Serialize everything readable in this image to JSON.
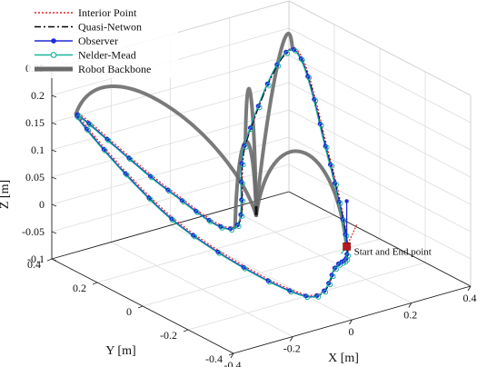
{
  "chart_data": {
    "type": "line3d",
    "xlabel": "X [m]",
    "ylabel": "Y [m]",
    "zlabel": "Z [m]",
    "xlim": [
      -0.4,
      0.4
    ],
    "ylim": [
      -0.4,
      0.4
    ],
    "zlim": [
      -0.1,
      0.25
    ],
    "xticks": [
      "-0.4",
      "-0.2",
      "0",
      "0.2",
      "0.4"
    ],
    "yticks": [
      "-0.4",
      "-0.2",
      "0",
      "0.2",
      "0.4"
    ],
    "zticks": [
      "-0.1",
      "-0.05",
      "0",
      "0.05",
      "0.1",
      "0.15",
      "0.2",
      "0.25"
    ],
    "grid": true,
    "legend_position": "top-left",
    "legend": [
      {
        "name": "Interior Point",
        "color": "#e0201b",
        "style": "dotted"
      },
      {
        "name": "Quasi-Netwon",
        "color": "#000000",
        "style": "dashdot"
      },
      {
        "name": "Observer",
        "color": "#1f2ad8",
        "style": "solid",
        "marker": "filled-circle"
      },
      {
        "name": "Nelder-Mead",
        "color": "#18b59a",
        "style": "solid",
        "marker": "open-circle"
      },
      {
        "name": "Robot Backbone",
        "color": "#6b6b6b",
        "style": "thick"
      }
    ],
    "annotation": "Start and End point",
    "start_point": {
      "x": 0.25,
      "y": -0.05,
      "z": -0.08
    },
    "trajectory": {
      "description": "double-lobed closed path",
      "points": [
        {
          "x": 0.25,
          "y": -0.05,
          "z": -0.08
        },
        {
          "x": 0.3,
          "y": 0.1,
          "z": 0.05
        },
        {
          "x": 0.32,
          "y": 0.28,
          "z": 0.2
        },
        {
          "x": 0.1,
          "y": 0.2,
          "z": 0.08
        },
        {
          "x": -0.05,
          "y": 0.05,
          "z": -0.02
        },
        {
          "x": -0.2,
          "y": 0.15,
          "z": 0.05
        },
        {
          "x": -0.38,
          "y": 0.32,
          "z": 0.18
        },
        {
          "x": -0.25,
          "y": 0.05,
          "z": 0.02
        },
        {
          "x": -0.05,
          "y": -0.25,
          "z": -0.08
        },
        {
          "x": 0.1,
          "y": -0.2,
          "z": -0.06
        },
        {
          "x": 0.25,
          "y": -0.05,
          "z": -0.08
        }
      ]
    }
  }
}
